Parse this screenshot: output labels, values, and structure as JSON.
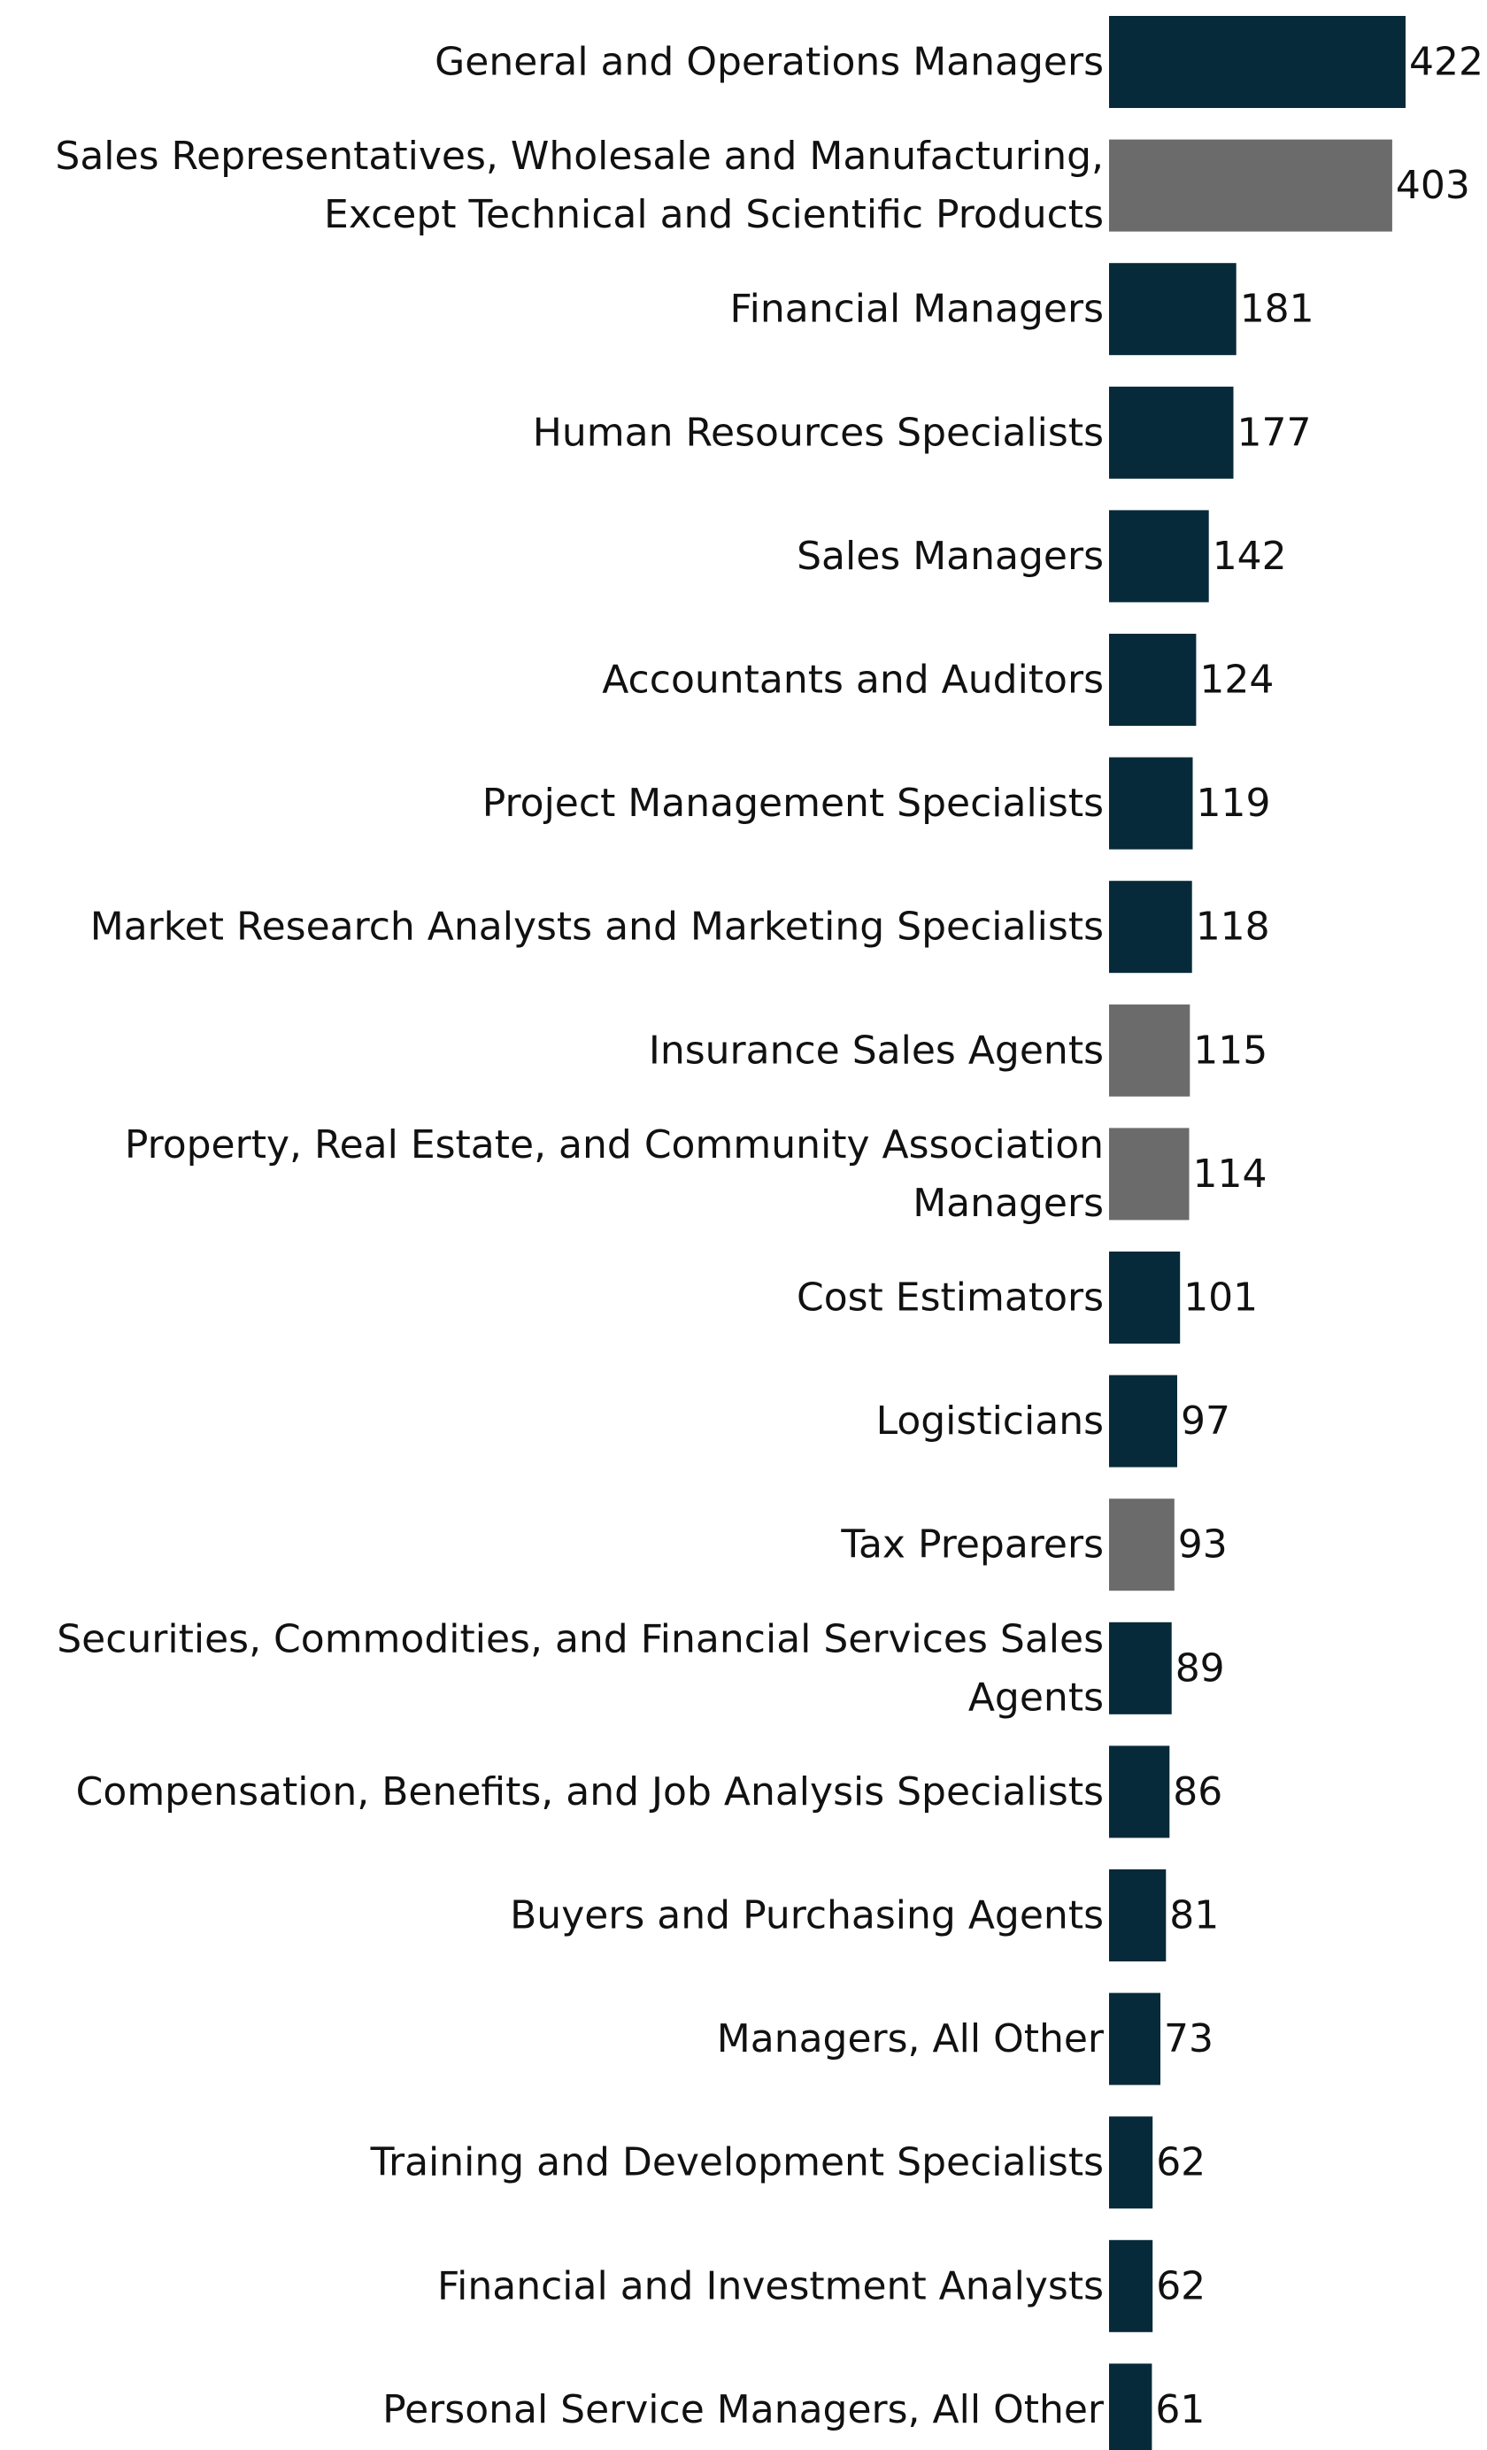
{
  "colors": {
    "primary": "#062a39",
    "secondary": "#6b6b6b",
    "text": "#111111",
    "background": "#ffffff"
  },
  "chart_data": {
    "type": "bar",
    "orientation": "horizontal",
    "title": "",
    "xlabel": "",
    "ylabel": "",
    "grid": false,
    "xlim": [
      0,
      422
    ],
    "categories": [
      "General and Operations Managers",
      "Sales Representatives, Wholesale and Manufacturing, Except Technical and Scientific Products",
      "Financial Managers",
      "Human Resources Specialists",
      "Sales Managers",
      "Accountants and Auditors",
      "Project Management Specialists",
      "Market Research Analysts and Marketing Specialists",
      "Insurance Sales Agents",
      "Property, Real Estate, and Community Association Managers",
      "Cost Estimators",
      "Logisticians",
      "Tax Preparers",
      "Securities, Commodities, and Financial Services Sales Agents",
      "Compensation, Benefits, and Job Analysis Specialists",
      "Buyers and Purchasing Agents",
      "Managers, All Other",
      "Training and Development Specialists",
      "Financial and Investment Analysts",
      "Personal Service Managers, All Other"
    ],
    "label_lines": [
      [
        "General and Operations Managers"
      ],
      [
        "Sales Representatives, Wholesale and Manufacturing,",
        "Except Technical and Scientific Products"
      ],
      [
        "Financial Managers"
      ],
      [
        "Human Resources Specialists"
      ],
      [
        "Sales Managers"
      ],
      [
        "Accountants and Auditors"
      ],
      [
        "Project Management Specialists"
      ],
      [
        "Market Research Analysts and Marketing Specialists"
      ],
      [
        "Insurance Sales Agents"
      ],
      [
        "Property, Real Estate, and Community Association",
        "Managers"
      ],
      [
        "Cost Estimators"
      ],
      [
        "Logisticians"
      ],
      [
        "Tax Preparers"
      ],
      [
        "Securities, Commodities, and Financial Services Sales",
        "Agents"
      ],
      [
        "Compensation, Benefits, and Job Analysis Specialists"
      ],
      [
        "Buyers and Purchasing Agents"
      ],
      [
        "Managers, All Other"
      ],
      [
        "Training and Development Specialists"
      ],
      [
        "Financial and Investment Analysts"
      ],
      [
        "Personal Service Managers, All Other"
      ]
    ],
    "values": [
      422,
      403,
      181,
      177,
      142,
      124,
      119,
      118,
      115,
      114,
      101,
      97,
      93,
      89,
      86,
      81,
      73,
      62,
      62,
      61
    ],
    "value_labels": [
      "422",
      "403",
      "181",
      "177",
      "142",
      "124",
      "119",
      "118",
      "115",
      "114",
      "101",
      "97",
      "93",
      "89",
      "86",
      "81",
      "73",
      "62",
      "62",
      "61"
    ],
    "highlight": [
      "primary",
      "secondary",
      "primary",
      "primary",
      "primary",
      "primary",
      "primary",
      "primary",
      "secondary",
      "secondary",
      "primary",
      "primary",
      "secondary",
      "primary",
      "primary",
      "primary",
      "primary",
      "primary",
      "primary",
      "primary"
    ]
  }
}
